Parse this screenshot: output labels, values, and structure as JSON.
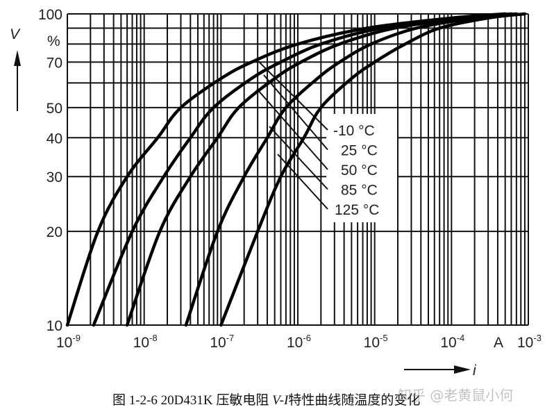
{
  "chart_data": {
    "type": "line",
    "title": "",
    "xlabel": "i",
    "x_unit": "A",
    "ylabel": "V",
    "y_unit": "%",
    "xscale": "log",
    "yscale": "log",
    "xlim": [
      1e-09,
      0.001
    ],
    "ylim": [
      10,
      100
    ],
    "grid": true,
    "x_ticks": [
      "10^-9",
      "10^-8",
      "10^-7",
      "10^-6",
      "10^-5",
      "10^-4",
      "10^-3"
    ],
    "y_ticks": [
      "100",
      "70",
      "50",
      "40",
      "30",
      "20",
      "10"
    ],
    "legend_position": "inline-annotations",
    "series": [
      {
        "name": "-10 °C",
        "x": [
          1e-09,
          2.5e-09,
          6e-09,
          1.5e-08,
          3e-08,
          1e-07,
          2.5e-07,
          1e-06,
          8e-06,
          0.0001,
          0.0005
        ],
        "y": [
          10,
          20,
          30,
          40,
          50,
          62,
          70,
          80,
          90,
          97,
          100
        ]
      },
      {
        "name": "25 °C",
        "x": [
          2.2e-09,
          7e-09,
          1.8e-08,
          4e-08,
          8e-08,
          2.5e-07,
          6e-07,
          2e-06,
          1.2e-05,
          0.00012,
          0.0005
        ],
        "y": [
          10,
          20,
          30,
          40,
          50,
          62,
          70,
          80,
          90,
          97,
          100
        ]
      },
      {
        "name": "50 °C",
        "x": [
          6e-09,
          1.6e-08,
          4e-08,
          9e-08,
          1.7e-07,
          5e-07,
          1.1e-06,
          3.5e-06,
          1.8e-05,
          0.00015,
          0.0006
        ],
        "y": [
          10,
          20,
          30,
          40,
          50,
          62,
          70,
          80,
          90,
          97,
          100
        ]
      },
      {
        "name": "85 °C",
        "x": [
          3.5e-08,
          9e-08,
          2e-07,
          4e-07,
          7e-07,
          1.8e-06,
          3.5e-06,
          9e-06,
          3.5e-05,
          0.0002,
          0.0007
        ],
        "y": [
          10,
          20,
          30,
          40,
          50,
          62,
          70,
          80,
          90,
          97,
          100
        ]
      },
      {
        "name": "125 °C",
        "x": [
          1e-07,
          3e-07,
          6e-07,
          1.2e-06,
          2e-06,
          5e-06,
          1e-05,
          2.5e-05,
          7e-05,
          0.0003,
          0.0009
        ],
        "y": [
          10,
          20,
          30,
          40,
          50,
          62,
          70,
          80,
          90,
          97,
          100
        ]
      }
    ]
  },
  "axis": {
    "y_symbol": "V",
    "y_unit": "%",
    "y_labels": {
      "v100": "100",
      "v70": "70",
      "v50": "50",
      "v40": "40",
      "v30": "30",
      "v20": "20",
      "v10": "10"
    },
    "x_base": "10",
    "x_exps": [
      "-9",
      "-8",
      "-7",
      "-6",
      "-5",
      "-4",
      "-3"
    ],
    "x_unit": "A",
    "x_symbol": "i"
  },
  "legend": [
    "-10 °C",
    "25 °C",
    "50 °C",
    "85 °C",
    "125 °C"
  ],
  "caption": {
    "prefix": "图 1-2-6 20D431K 压敏电阻 ",
    "italic": "V-I",
    "suffix": "特性曲线随温度的变化"
  },
  "watermark": "知乎 @老黄鼠小何"
}
